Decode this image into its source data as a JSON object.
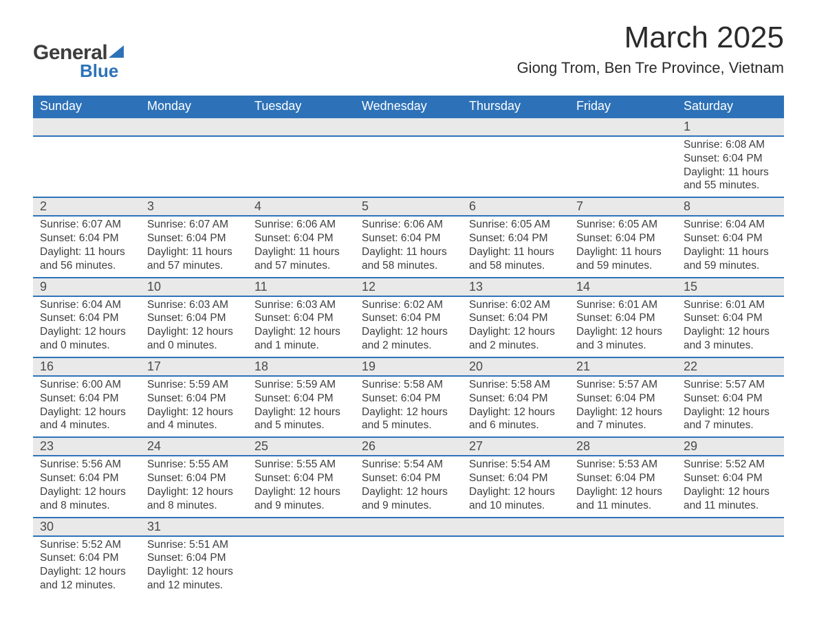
{
  "logo": {
    "text1": "General",
    "text2": "Blue"
  },
  "title": "March 2025",
  "location": "Giong Trom, Ben Tre Province, Vietnam",
  "colors": {
    "brand_blue": "#2d72b8",
    "header_text": "#ffffff",
    "daynum_bg": "#e9e9e9",
    "body_text": "#3d3d3d",
    "page_bg": "#ffffff"
  },
  "weekdays": [
    "Sunday",
    "Monday",
    "Tuesday",
    "Wednesday",
    "Thursday",
    "Friday",
    "Saturday"
  ],
  "weeks": [
    [
      null,
      null,
      null,
      null,
      null,
      null,
      {
        "n": "1",
        "sr": "6:08 AM",
        "ss": "6:04 PM",
        "dl": "11 hours and 55 minutes."
      }
    ],
    [
      {
        "n": "2",
        "sr": "6:07 AM",
        "ss": "6:04 PM",
        "dl": "11 hours and 56 minutes."
      },
      {
        "n": "3",
        "sr": "6:07 AM",
        "ss": "6:04 PM",
        "dl": "11 hours and 57 minutes."
      },
      {
        "n": "4",
        "sr": "6:06 AM",
        "ss": "6:04 PM",
        "dl": "11 hours and 57 minutes."
      },
      {
        "n": "5",
        "sr": "6:06 AM",
        "ss": "6:04 PM",
        "dl": "11 hours and 58 minutes."
      },
      {
        "n": "6",
        "sr": "6:05 AM",
        "ss": "6:04 PM",
        "dl": "11 hours and 58 minutes."
      },
      {
        "n": "7",
        "sr": "6:05 AM",
        "ss": "6:04 PM",
        "dl": "11 hours and 59 minutes."
      },
      {
        "n": "8",
        "sr": "6:04 AM",
        "ss": "6:04 PM",
        "dl": "11 hours and 59 minutes."
      }
    ],
    [
      {
        "n": "9",
        "sr": "6:04 AM",
        "ss": "6:04 PM",
        "dl": "12 hours and 0 minutes."
      },
      {
        "n": "10",
        "sr": "6:03 AM",
        "ss": "6:04 PM",
        "dl": "12 hours and 0 minutes."
      },
      {
        "n": "11",
        "sr": "6:03 AM",
        "ss": "6:04 PM",
        "dl": "12 hours and 1 minute."
      },
      {
        "n": "12",
        "sr": "6:02 AM",
        "ss": "6:04 PM",
        "dl": "12 hours and 2 minutes."
      },
      {
        "n": "13",
        "sr": "6:02 AM",
        "ss": "6:04 PM",
        "dl": "12 hours and 2 minutes."
      },
      {
        "n": "14",
        "sr": "6:01 AM",
        "ss": "6:04 PM",
        "dl": "12 hours and 3 minutes."
      },
      {
        "n": "15",
        "sr": "6:01 AM",
        "ss": "6:04 PM",
        "dl": "12 hours and 3 minutes."
      }
    ],
    [
      {
        "n": "16",
        "sr": "6:00 AM",
        "ss": "6:04 PM",
        "dl": "12 hours and 4 minutes."
      },
      {
        "n": "17",
        "sr": "5:59 AM",
        "ss": "6:04 PM",
        "dl": "12 hours and 4 minutes."
      },
      {
        "n": "18",
        "sr": "5:59 AM",
        "ss": "6:04 PM",
        "dl": "12 hours and 5 minutes."
      },
      {
        "n": "19",
        "sr": "5:58 AM",
        "ss": "6:04 PM",
        "dl": "12 hours and 5 minutes."
      },
      {
        "n": "20",
        "sr": "5:58 AM",
        "ss": "6:04 PM",
        "dl": "12 hours and 6 minutes."
      },
      {
        "n": "21",
        "sr": "5:57 AM",
        "ss": "6:04 PM",
        "dl": "12 hours and 7 minutes."
      },
      {
        "n": "22",
        "sr": "5:57 AM",
        "ss": "6:04 PM",
        "dl": "12 hours and 7 minutes."
      }
    ],
    [
      {
        "n": "23",
        "sr": "5:56 AM",
        "ss": "6:04 PM",
        "dl": "12 hours and 8 minutes."
      },
      {
        "n": "24",
        "sr": "5:55 AM",
        "ss": "6:04 PM",
        "dl": "12 hours and 8 minutes."
      },
      {
        "n": "25",
        "sr": "5:55 AM",
        "ss": "6:04 PM",
        "dl": "12 hours and 9 minutes."
      },
      {
        "n": "26",
        "sr": "5:54 AM",
        "ss": "6:04 PM",
        "dl": "12 hours and 9 minutes."
      },
      {
        "n": "27",
        "sr": "5:54 AM",
        "ss": "6:04 PM",
        "dl": "12 hours and 10 minutes."
      },
      {
        "n": "28",
        "sr": "5:53 AM",
        "ss": "6:04 PM",
        "dl": "12 hours and 11 minutes."
      },
      {
        "n": "29",
        "sr": "5:52 AM",
        "ss": "6:04 PM",
        "dl": "12 hours and 11 minutes."
      }
    ],
    [
      {
        "n": "30",
        "sr": "5:52 AM",
        "ss": "6:04 PM",
        "dl": "12 hours and 12 minutes."
      },
      {
        "n": "31",
        "sr": "5:51 AM",
        "ss": "6:04 PM",
        "dl": "12 hours and 12 minutes."
      },
      null,
      null,
      null,
      null,
      null
    ]
  ],
  "labels": {
    "sunrise": "Sunrise:",
    "sunset": "Sunset:",
    "daylight": "Daylight:"
  }
}
